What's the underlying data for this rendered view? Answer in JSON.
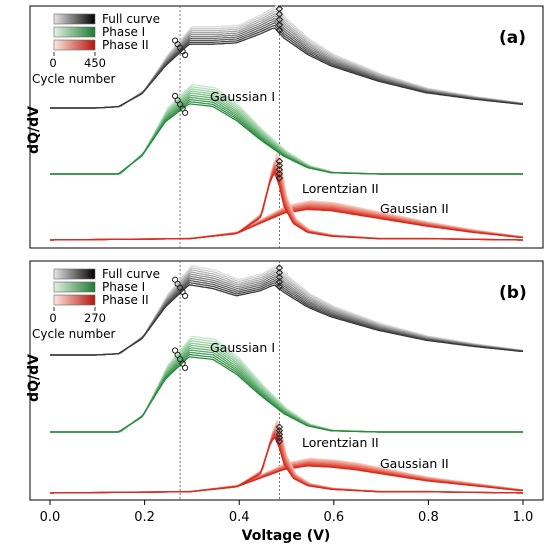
{
  "chart_data": {
    "type": "line",
    "xlabel": "Voltage (V)",
    "ylabel": "dQ/dV",
    "xlim": [
      0.0,
      1.0
    ],
    "x_ticks": [
      "0.0",
      "0.2",
      "0.4",
      "0.6",
      "0.8",
      "1.0"
    ],
    "reference_lines_V": [
      0.275,
      0.485
    ],
    "legend_entries": [
      "Full curve",
      "Phase I",
      "Phase II"
    ],
    "colorbar_title": "Cycle number",
    "colors": {
      "full": "#3a3a3a",
      "phase1": "#2a8a3e",
      "phase2": "#d92a1e"
    },
    "panels": [
      {
        "label": "(a)",
        "cycle_range": [
          "0",
          "450"
        ],
        "annotations": [
          "Gaussian I",
          "Lorentzian II",
          "Gaussian II"
        ],
        "full_curve": {
          "x": [
            0.0,
            0.1,
            0.15,
            0.2,
            0.25,
            0.3,
            0.35,
            0.4,
            0.45,
            0.48,
            0.5,
            0.55,
            0.6,
            0.7,
            0.8,
            0.9,
            1.0
          ],
          "y": [
            0.0,
            0.0,
            0.01,
            0.11,
            0.33,
            0.5,
            0.5,
            0.51,
            0.58,
            0.63,
            0.55,
            0.42,
            0.33,
            0.21,
            0.12,
            0.07,
            0.03
          ]
        },
        "gaussian_I": {
          "x": [
            0.0,
            0.15,
            0.2,
            0.25,
            0.3,
            0.35,
            0.4,
            0.45,
            0.5,
            0.55,
            0.6,
            0.7,
            1.0
          ],
          "y": [
            0.0,
            0.0,
            0.14,
            0.41,
            0.55,
            0.53,
            0.42,
            0.27,
            0.14,
            0.05,
            0.01,
            0.0,
            0.0
          ]
        },
        "lorentzian_II": {
          "x": [
            0.0,
            0.3,
            0.4,
            0.45,
            0.47,
            0.48,
            0.49,
            0.5,
            0.52,
            0.55,
            0.6,
            0.7,
            0.8,
            1.0
          ],
          "y": [
            0.0,
            0.01,
            0.05,
            0.17,
            0.44,
            0.53,
            0.44,
            0.27,
            0.13,
            0.06,
            0.03,
            0.01,
            0.01,
            0.0
          ]
        },
        "gaussian_II": {
          "x": [
            0.0,
            0.3,
            0.4,
            0.45,
            0.5,
            0.55,
            0.6,
            0.65,
            0.7,
            0.8,
            0.9,
            1.0
          ],
          "y": [
            0.0,
            0.01,
            0.05,
            0.13,
            0.21,
            0.24,
            0.23,
            0.2,
            0.17,
            0.11,
            0.06,
            0.02
          ]
        }
      },
      {
        "label": "(b)",
        "cycle_range": [
          "0",
          "270"
        ],
        "annotations": [
          "Gaussian I",
          "Lorentzian II",
          "Gaussian II"
        ],
        "full_curve": {
          "x": [
            0.0,
            0.1,
            0.15,
            0.2,
            0.25,
            0.3,
            0.35,
            0.4,
            0.45,
            0.48,
            0.5,
            0.55,
            0.6,
            0.7,
            0.8,
            0.9,
            1.0
          ],
          "y": [
            0.0,
            0.0,
            0.01,
            0.13,
            0.39,
            0.57,
            0.54,
            0.48,
            0.52,
            0.57,
            0.51,
            0.39,
            0.31,
            0.2,
            0.12,
            0.07,
            0.03
          ]
        },
        "gaussian_I": {
          "x": [
            0.0,
            0.15,
            0.2,
            0.25,
            0.3,
            0.35,
            0.4,
            0.45,
            0.5,
            0.55,
            0.6,
            0.7,
            1.0
          ],
          "y": [
            0.0,
            0.0,
            0.12,
            0.43,
            0.61,
            0.59,
            0.47,
            0.3,
            0.15,
            0.05,
            0.01,
            0.0,
            0.0
          ]
        },
        "lorentzian_II": {
          "x": [
            0.0,
            0.3,
            0.4,
            0.45,
            0.47,
            0.48,
            0.49,
            0.5,
            0.52,
            0.55,
            0.6,
            0.7,
            0.8,
            1.0
          ],
          "y": [
            0.0,
            0.01,
            0.05,
            0.15,
            0.38,
            0.46,
            0.38,
            0.24,
            0.12,
            0.06,
            0.03,
            0.01,
            0.01,
            0.0
          ]
        },
        "gaussian_II": {
          "x": [
            0.0,
            0.3,
            0.4,
            0.45,
            0.5,
            0.55,
            0.6,
            0.65,
            0.7,
            0.8,
            0.9,
            1.0
          ],
          "y": [
            0.0,
            0.01,
            0.05,
            0.12,
            0.19,
            0.22,
            0.21,
            0.19,
            0.16,
            0.1,
            0.06,
            0.02
          ]
        }
      }
    ]
  }
}
